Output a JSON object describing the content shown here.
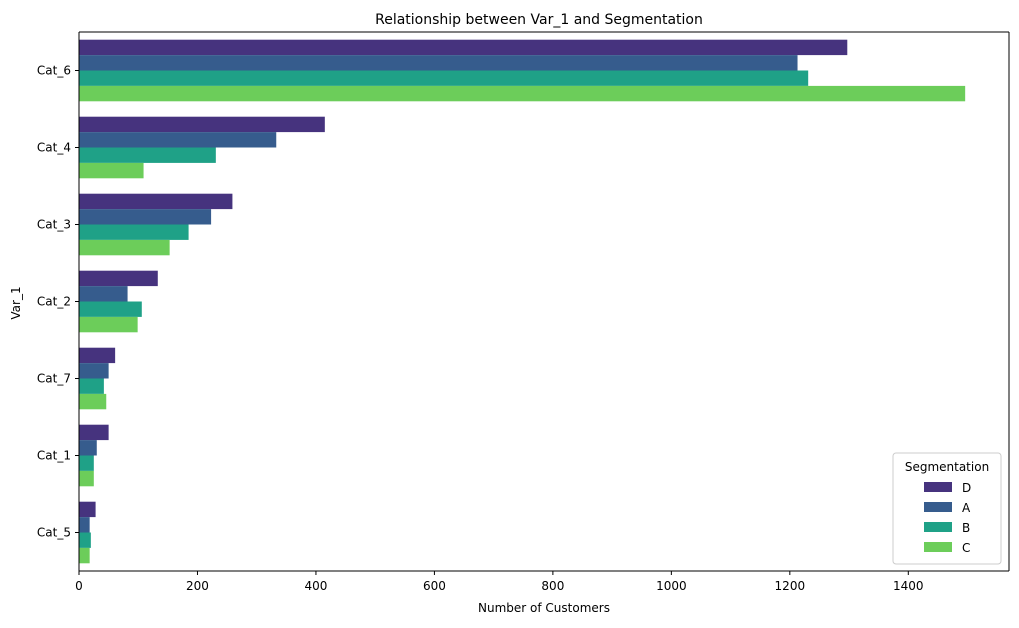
{
  "chart_data": {
    "type": "bar",
    "orientation": "horizontal",
    "title": "Relationship between Var_1 and Segmentation",
    "xlabel": "Number of Customers",
    "ylabel": "Var_1",
    "xlim": [
      0,
      1570
    ],
    "xticks": [
      0,
      200,
      400,
      600,
      800,
      1000,
      1200,
      1400
    ],
    "categories": [
      "Cat_6",
      "Cat_4",
      "Cat_3",
      "Cat_2",
      "Cat_7",
      "Cat_1",
      "Cat_5"
    ],
    "legend": {
      "title": "Segmentation",
      "position": "lower-right"
    },
    "grid": false,
    "series": [
      {
        "name": "D",
        "color": "#46337e",
        "values": [
          1297,
          415,
          259,
          133,
          61,
          50,
          28
        ]
      },
      {
        "name": "A",
        "color": "#365c8d",
        "values": [
          1213,
          333,
          223,
          82,
          50,
          30,
          18
        ]
      },
      {
        "name": "B",
        "color": "#1fa187",
        "values": [
          1231,
          231,
          185,
          106,
          42,
          25,
          20
        ]
      },
      {
        "name": "C",
        "color": "#6ccd5a",
        "values": [
          1496,
          109,
          153,
          99,
          46,
          25,
          18
        ]
      }
    ]
  }
}
